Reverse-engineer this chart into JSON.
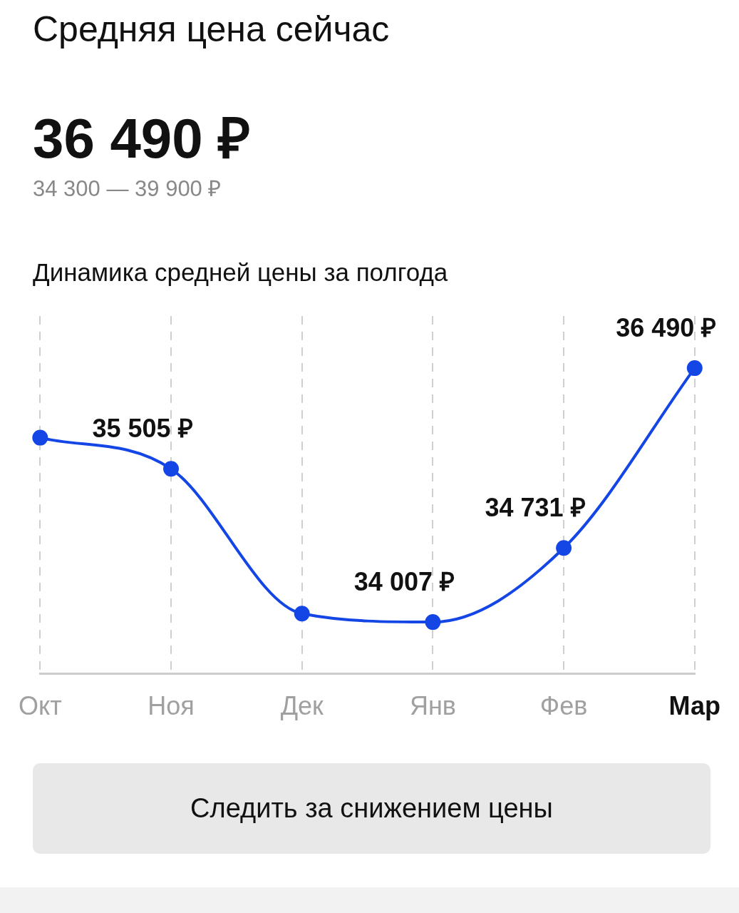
{
  "chart_data": {
    "type": "line",
    "title": "Средняя цена сейчас",
    "subtitle": "36 490 ₽",
    "annotations": [
      "34 300 — 39 900 ₽",
      "Динамика средней цены за полгода",
      "Следить за снижением цены"
    ],
    "categories": [
      "Окт",
      "Ноя",
      "Дек",
      "Янв",
      "Фев",
      "Мар"
    ],
    "series": [
      {
        "color": "#1446e6",
        "values": [
          35810,
          35505,
          34090,
          34007,
          34731,
          36490
        ],
        "value_labels": [
          null,
          "35 505 ₽",
          null,
          "34 007 ₽",
          "34 731 ₽",
          "36 490 ₽"
        ]
      }
    ],
    "marker": "circle",
    "line_style": "solid",
    "grid": "x",
    "legend": false
  }
}
